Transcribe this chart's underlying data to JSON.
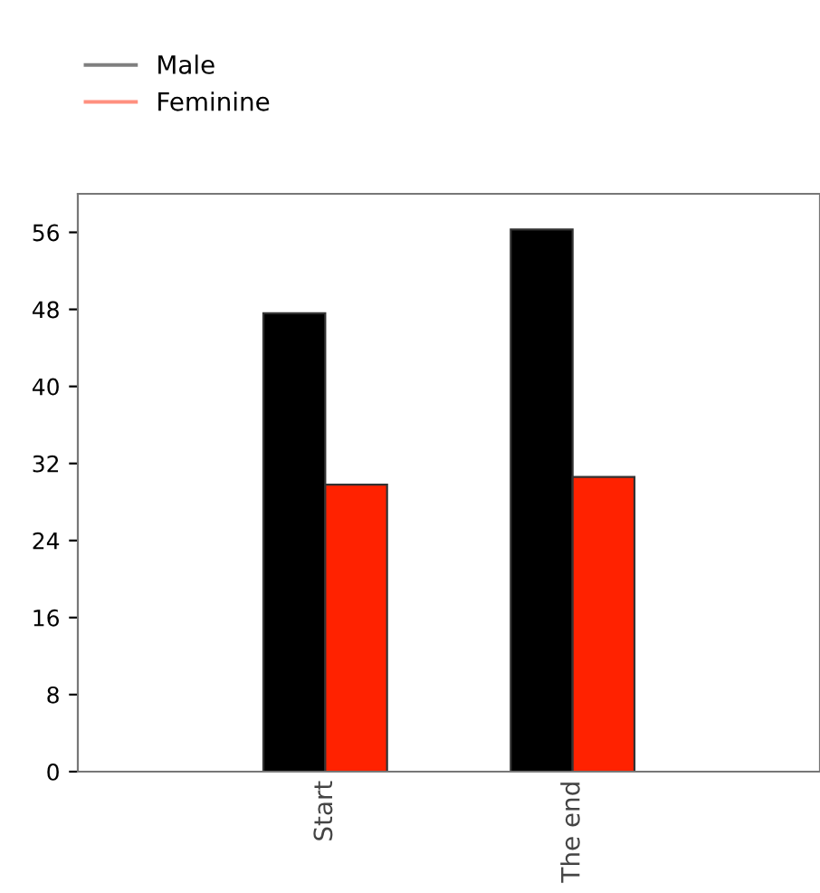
{
  "chart_data": {
    "type": "bar",
    "categories": [
      "Start",
      "The end"
    ],
    "series": [
      {
        "name": "Male",
        "color": "#000000",
        "values": [
          47.6,
          56.3
        ]
      },
      {
        "name": "Feminine",
        "color": "#ff2200",
        "values": [
          29.8,
          30.6
        ]
      }
    ],
    "ylim": [
      0,
      60
    ],
    "yticks": [
      0,
      8,
      16,
      24,
      32,
      40,
      48,
      56
    ],
    "grid": false,
    "legend": "top left"
  }
}
